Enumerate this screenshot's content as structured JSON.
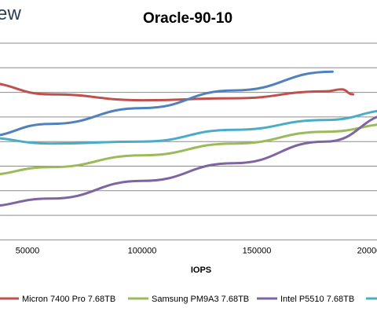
{
  "brand": {
    "text": "ew"
  },
  "chart_data": {
    "type": "line",
    "title": "Oracle-90-10",
    "xlabel": "IOPS",
    "ylabel": "",
    "x_ticks": [
      50000,
      100000,
      150000,
      200000
    ],
    "x_tick_labels": [
      "50000",
      "100000",
      "150000",
      "200000"
    ],
    "grid": true,
    "legend_position": "bottom",
    "series": [
      {
        "name": "Micron 7400 Pro 7.68TB",
        "color": "#c0504d",
        "points": [
          [
            30000,
            0.8
          ],
          [
            60000,
            0.74
          ],
          [
            100000,
            0.71
          ],
          [
            140000,
            0.72
          ],
          [
            180000,
            0.755
          ],
          [
            187000,
            0.765
          ],
          [
            192000,
            0.74
          ]
        ]
      },
      {
        "name": "Samsung PM9A3 7.68TB",
        "color": "#9bbb59",
        "points": [
          [
            30000,
            0.33
          ],
          [
            60000,
            0.37
          ],
          [
            100000,
            0.43
          ],
          [
            140000,
            0.49
          ],
          [
            180000,
            0.55
          ],
          [
            210000,
            0.59
          ]
        ]
      },
      {
        "name": "Intel P5510 7.68TB",
        "color": "#8064a2",
        "points": [
          [
            30000,
            0.17
          ],
          [
            60000,
            0.21
          ],
          [
            100000,
            0.3
          ],
          [
            140000,
            0.39
          ],
          [
            180000,
            0.5
          ],
          [
            210000,
            0.64
          ]
        ]
      },
      {
        "name": "",
        "color": "#4f81bd",
        "points": [
          [
            30000,
            0.525
          ],
          [
            60000,
            0.59
          ],
          [
            100000,
            0.67
          ],
          [
            140000,
            0.76
          ],
          [
            183000,
            0.855
          ]
        ]
      },
      {
        "name": "",
        "color": "#4bacc6",
        "points": [
          [
            30000,
            0.52
          ],
          [
            60000,
            0.49
          ],
          [
            100000,
            0.5
          ],
          [
            140000,
            0.56
          ],
          [
            180000,
            0.61
          ],
          [
            210000,
            0.66
          ]
        ]
      }
    ]
  }
}
